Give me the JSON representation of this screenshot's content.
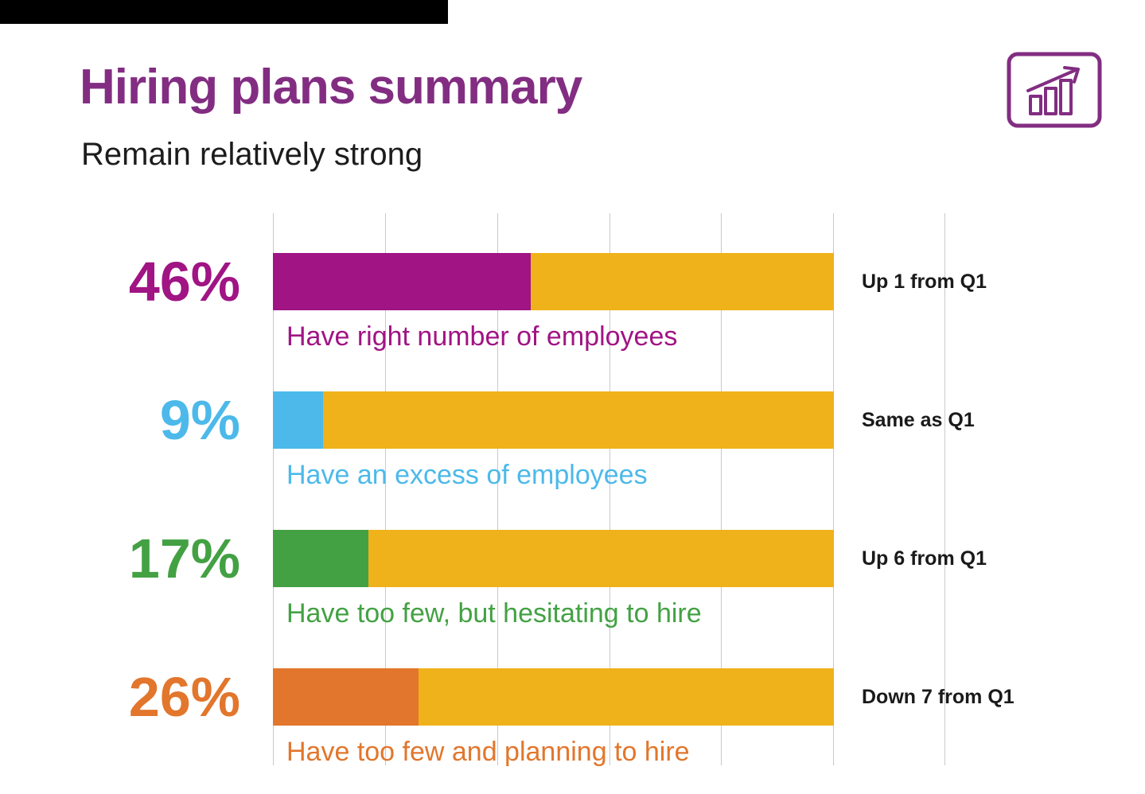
{
  "page": {
    "title": "Hiring plans summary",
    "subtitle": "Remain relatively strong"
  },
  "colors": {
    "title": "#822D82",
    "magenta": "#A01484",
    "blue": "#4CB9EA",
    "green": "#43A143",
    "orange": "#E2762C",
    "gold": "#EFB21A",
    "annotation": "#1A1A1A",
    "gridline": "#C9C9C9"
  },
  "icon": {
    "name": "bar-chart-growth-icon"
  },
  "chart_data": {
    "type": "bar",
    "orientation": "horizontal",
    "title": "Hiring plans summary",
    "subtitle": "Remain relatively strong",
    "xlim": [
      0,
      100
    ],
    "grid": true,
    "remainder_color": "#EFB21A",
    "bars": [
      {
        "value": 46,
        "value_label": "46%",
        "label": "Have right number of employees",
        "annotation": "Up 1 from Q1",
        "color": "#A01484"
      },
      {
        "value": 9,
        "value_label": "9%",
        "label": "Have an excess of employees",
        "annotation": "Same as Q1",
        "color": "#4CB9EA"
      },
      {
        "value": 17,
        "value_label": "17%",
        "label": "Have too few, but hesitating to hire",
        "annotation": "Up 6 from Q1",
        "color": "#43A143"
      },
      {
        "value": 26,
        "value_label": "26%",
        "label": "Have too few and planning to hire",
        "annotation": "Down 7 from Q1",
        "color": "#E2762C"
      }
    ]
  }
}
